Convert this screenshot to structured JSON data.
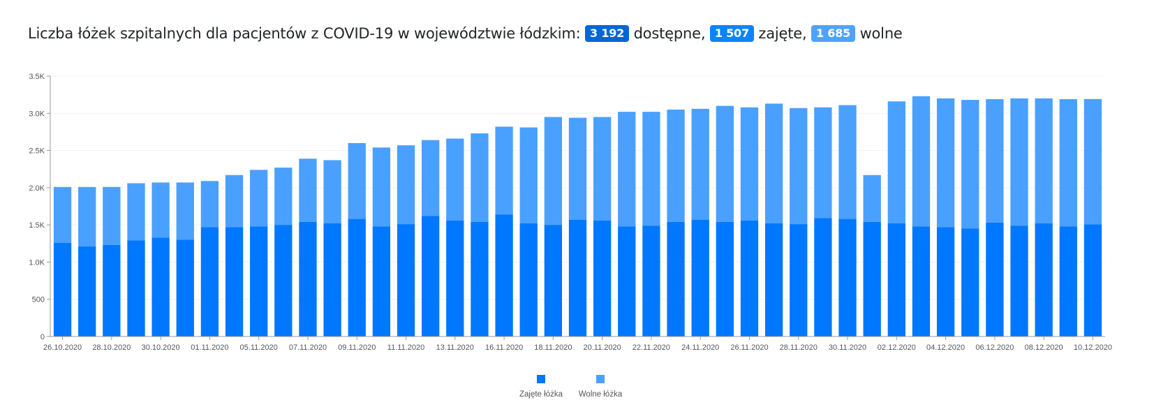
{
  "header": {
    "title_prefix": "Liczba łóżek szpitalnych dla pacjentów z COVID-19 w województwie łódzkim:",
    "available_value": "3 192",
    "available_label": "dostępne,",
    "occupied_value": "1 507",
    "occupied_label": "zajęte,",
    "free_value": "1 685",
    "free_label": "wolne"
  },
  "colors": {
    "occupied": "#0077ff",
    "free": "#4aa0ff",
    "badge_available": "#0066d6",
    "badge_occupied": "#0a84ff",
    "badge_free": "#4da3ff"
  },
  "chart_data": {
    "type": "bar",
    "stacked": true,
    "categories": [
      "26.10.2020",
      "27.10.2020",
      "28.10.2020",
      "29.10.2020",
      "30.10.2020",
      "31.10.2020",
      "01.11.2020",
      "04.11.2020",
      "05.11.2020",
      "06.11.2020",
      "07.11.2020",
      "08.11.2020",
      "09.11.2020",
      "10.11.2020",
      "11.11.2020",
      "12.11.2020",
      "13.11.2020",
      "14.11.2020",
      "16.11.2020",
      "17.11.2020",
      "18.11.2020",
      "19.11.2020",
      "20.11.2020",
      "21.11.2020",
      "22.11.2020",
      "23.11.2020",
      "24.11.2020",
      "25.11.2020",
      "26.11.2020",
      "27.11.2020",
      "28.11.2020",
      "29.11.2020",
      "30.11.2020",
      "01.12.2020",
      "02.12.2020",
      "03.12.2020",
      "04.12.2020",
      "05.12.2020",
      "06.12.2020",
      "07.12.2020",
      "08.12.2020",
      "09.12.2020",
      "10.12.2020"
    ],
    "series": [
      {
        "name": "Zajęte łóżka",
        "values": [
          1260,
          1210,
          1230,
          1290,
          1330,
          1300,
          1470,
          1470,
          1480,
          1500,
          1540,
          1520,
          1580,
          1480,
          1510,
          1620,
          1560,
          1540,
          1640,
          1520,
          1500,
          1570,
          1560,
          1480,
          1490,
          1540,
          1570,
          1540,
          1560,
          1520,
          1510,
          1590,
          1580,
          1540,
          1520,
          1480,
          1470,
          1450,
          1530,
          1490,
          1520,
          1480,
          1507
        ]
      },
      {
        "name": "Wolne łóżka",
        "values": [
          750,
          800,
          780,
          770,
          740,
          770,
          620,
          700,
          760,
          770,
          850,
          850,
          1020,
          1060,
          1060,
          1020,
          1100,
          1190,
          1180,
          1290,
          1450,
          1370,
          1390,
          1540,
          1530,
          1510,
          1490,
          1560,
          1520,
          1610,
          1560,
          1490,
          1530,
          630,
          1640,
          1750,
          1730,
          1730,
          1660,
          1710,
          1680,
          1710,
          1685
        ]
      }
    ],
    "x_tick_labels": [
      "26.10.2020",
      "28.10.2020",
      "30.10.2020",
      "01.11.2020",
      "05.11.2020",
      "07.11.2020",
      "09.11.2020",
      "11.11.2020",
      "13.11.2020",
      "16.11.2020",
      "18.11.2020",
      "20.11.2020",
      "22.11.2020",
      "24.11.2020",
      "26.11.2020",
      "28.11.2020",
      "30.11.2020",
      "02.12.2020",
      "04.12.2020",
      "06.12.2020",
      "08.12.2020",
      "10.12.2020"
    ],
    "y_ticks": [
      0,
      500,
      1000,
      1500,
      2000,
      2500,
      3000,
      3500
    ],
    "y_tick_labels": [
      "0",
      "500",
      "1.0K",
      "1.5K",
      "2.0K",
      "2.5K",
      "3.0K",
      "3.5K"
    ],
    "ylim": [
      0,
      3500
    ],
    "grid": true,
    "legend_position": "bottom-center"
  }
}
